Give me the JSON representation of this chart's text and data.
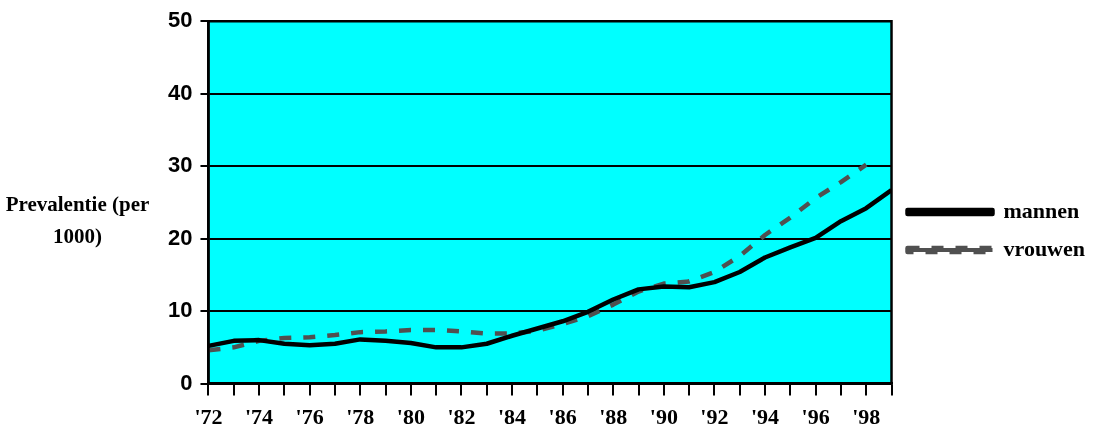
{
  "chart_data": {
    "type": "line",
    "ylabel": "Prevalentie (per 1000)",
    "x": [
      1972,
      1973,
      1974,
      1975,
      1976,
      1977,
      1978,
      1979,
      1980,
      1981,
      1982,
      1983,
      1984,
      1985,
      1986,
      1987,
      1988,
      1989,
      1990,
      1991,
      1992,
      1993,
      1994,
      1995,
      1996,
      1997,
      1998,
      1999
    ],
    "series": [
      {
        "name": "mannen",
        "color": "#000000",
        "line_style": "solid",
        "values": [
          5.2,
          5.9,
          6.0,
          5.5,
          5.3,
          5.5,
          6.1,
          5.9,
          5.6,
          5.0,
          5.0,
          5.5,
          6.6,
          7.6,
          8.6,
          9.9,
          11.6,
          13.0,
          13.4,
          13.3,
          14.0,
          15.4,
          17.4,
          18.8,
          20.1,
          22.4,
          24.2,
          26.7
        ]
      },
      {
        "name": "vrouwen",
        "color": "#505050",
        "line_style": "dashed",
        "values": [
          4.6,
          5.0,
          5.9,
          6.3,
          6.4,
          6.7,
          7.1,
          7.2,
          7.4,
          7.4,
          7.2,
          6.9,
          6.9,
          7.3,
          8.2,
          9.3,
          10.9,
          12.7,
          13.8,
          14.1,
          15.4,
          17.6,
          20.5,
          22.9,
          25.6,
          27.8,
          30.2,
          null
        ]
      }
    ],
    "xlim": [
      1972,
      1999
    ],
    "xticks": [
      {
        "value": 1972,
        "label": "'72"
      },
      {
        "value": 1973,
        "label": null
      },
      {
        "value": 1974,
        "label": "'74"
      },
      {
        "value": 1975,
        "label": null
      },
      {
        "value": 1976,
        "label": "'76"
      },
      {
        "value": 1977,
        "label": null
      },
      {
        "value": 1978,
        "label": "'78"
      },
      {
        "value": 1979,
        "label": null
      },
      {
        "value": 1980,
        "label": "'80"
      },
      {
        "value": 1981,
        "label": null
      },
      {
        "value": 1982,
        "label": "'82"
      },
      {
        "value": 1983,
        "label": null
      },
      {
        "value": 1984,
        "label": "'84"
      },
      {
        "value": 1985,
        "label": null
      },
      {
        "value": 1986,
        "label": "'86"
      },
      {
        "value": 1987,
        "label": null
      },
      {
        "value": 1988,
        "label": "'88"
      },
      {
        "value": 1989,
        "label": null
      },
      {
        "value": 1990,
        "label": "'90"
      },
      {
        "value": 1991,
        "label": null
      },
      {
        "value": 1992,
        "label": "'92"
      },
      {
        "value": 1993,
        "label": null
      },
      {
        "value": 1994,
        "label": "'94"
      },
      {
        "value": 1995,
        "label": null
      },
      {
        "value": 1996,
        "label": "'96"
      },
      {
        "value": 1997,
        "label": null
      },
      {
        "value": 1998,
        "label": "'98"
      },
      {
        "value": 1999,
        "label": null
      }
    ],
    "ylim": [
      0,
      50
    ],
    "yticks": [
      0,
      10,
      20,
      30,
      40,
      50
    ],
    "grid": "y",
    "legend": "right",
    "marker": "none"
  }
}
